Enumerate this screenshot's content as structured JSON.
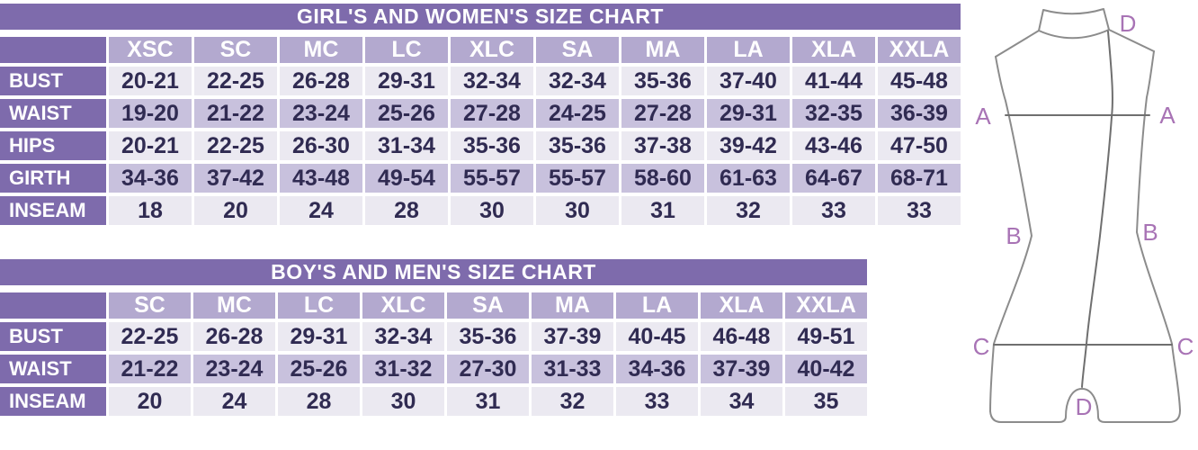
{
  "colors": {
    "title_bar": "#7e6bac",
    "header_cell": "#b3a9cf",
    "row_label_cell": "#7e6bac",
    "row_light": "#ebe9f1",
    "row_shaded": "#c8c1dd",
    "value_text": "#302b52",
    "header_text": "#ffffff",
    "figure_line": "#8c8c8c",
    "figure_letter": "#a873b5"
  },
  "chart_data": [
    {
      "type": "table",
      "title": "GIRL'S AND WOMEN'S SIZE CHART",
      "columns": [
        "XSC",
        "SC",
        "MC",
        "LC",
        "XLC",
        "SA",
        "MA",
        "LA",
        "XLA",
        "XXLA"
      ],
      "rows": [
        {
          "label": "BUST",
          "values": [
            "20-21",
            "22-25",
            "26-28",
            "29-31",
            "32-34",
            "32-34",
            "35-36",
            "37-40",
            "41-44",
            "45-48"
          ]
        },
        {
          "label": "WAIST",
          "values": [
            "19-20",
            "21-22",
            "23-24",
            "25-26",
            "27-28",
            "24-25",
            "27-28",
            "29-31",
            "32-35",
            "36-39"
          ]
        },
        {
          "label": "HIPS",
          "values": [
            "20-21",
            "22-25",
            "26-30",
            "31-34",
            "35-36",
            "35-36",
            "37-38",
            "39-42",
            "43-46",
            "47-50"
          ]
        },
        {
          "label": "GIRTH",
          "values": [
            "34-36",
            "37-42",
            "43-48",
            "49-54",
            "55-57",
            "55-57",
            "58-60",
            "61-63",
            "64-67",
            "68-71"
          ]
        },
        {
          "label": "INSEAM",
          "values": [
            "18",
            "20",
            "24",
            "28",
            "30",
            "30",
            "31",
            "32",
            "33",
            "33"
          ]
        }
      ]
    },
    {
      "type": "table",
      "title": "BOY'S AND MEN'S SIZE CHART",
      "columns": [
        "SC",
        "MC",
        "LC",
        "XLC",
        "SA",
        "MA",
        "LA",
        "XLA",
        "XXLA"
      ],
      "rows": [
        {
          "label": "BUST",
          "values": [
            "22-25",
            "26-28",
            "29-31",
            "32-34",
            "35-36",
            "37-39",
            "40-45",
            "46-48",
            "49-51"
          ]
        },
        {
          "label": "WAIST",
          "values": [
            "21-22",
            "23-24",
            "25-26",
            "31-32",
            "27-30",
            "31-33",
            "34-36",
            "37-39",
            "40-42"
          ]
        },
        {
          "label": "INSEAM",
          "values": [
            "20",
            "24",
            "28",
            "30",
            "31",
            "32",
            "33",
            "34",
            "35"
          ]
        }
      ]
    }
  ],
  "figure": {
    "measure_points": {
      "A": "A",
      "B": "B",
      "C": "C",
      "D": "D"
    }
  }
}
